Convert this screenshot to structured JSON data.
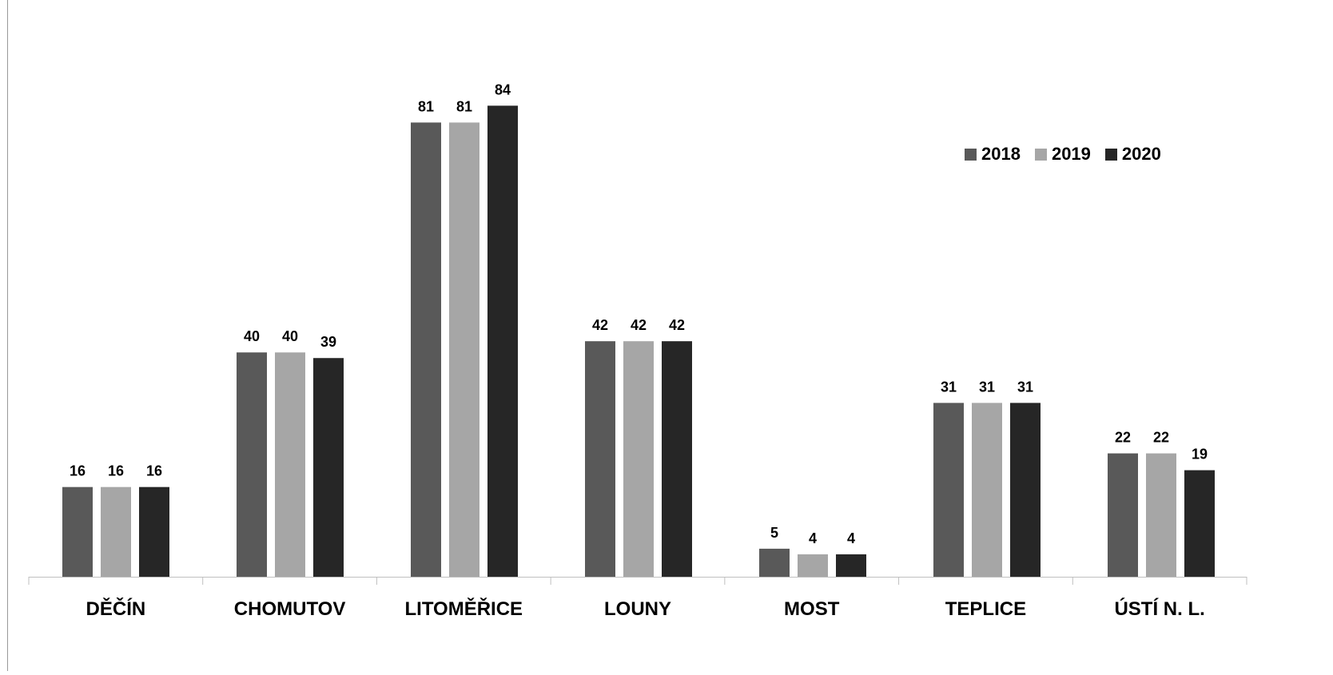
{
  "chart_data": {
    "type": "bar",
    "title": "",
    "xlabel": "",
    "ylabel": "",
    "ylim": [
      0,
      100
    ],
    "grid": false,
    "legend_position": "top-right",
    "categories": [
      "DĚČÍN",
      "CHOMUTOV",
      "LITOMĚŘICE",
      "LOUNY",
      "MOST",
      "TEPLICE",
      "ÚSTÍ N. L."
    ],
    "series": [
      {
        "name": "2018",
        "color": "#595959",
        "values": [
          16,
          40,
          81,
          42,
          5,
          31,
          22
        ]
      },
      {
        "name": "2019",
        "color": "#a6a6a6",
        "values": [
          16,
          40,
          81,
          42,
          4,
          31,
          22
        ]
      },
      {
        "name": "2020",
        "color": "#262626",
        "values": [
          16,
          39,
          84,
          42,
          4,
          31,
          19
        ]
      }
    ]
  }
}
